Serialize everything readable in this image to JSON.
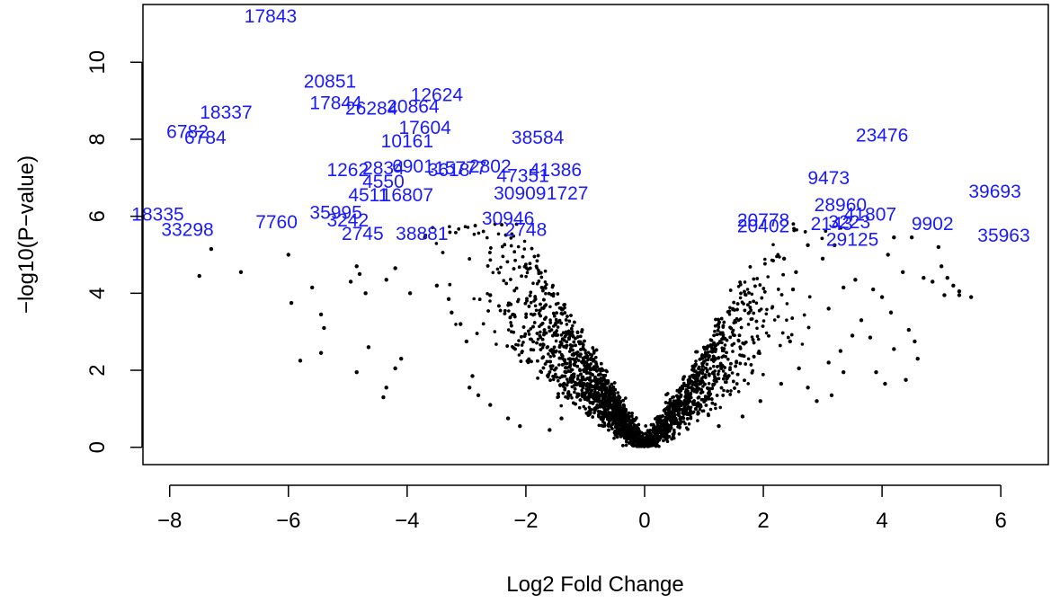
{
  "colors": {
    "point": "#000000",
    "label": "#1a1aff",
    "axis": "#000000",
    "background": "#ffffff"
  },
  "chart_data": {
    "type": "scatter",
    "title": "",
    "xlabel": "Log2 Fold Change",
    "ylabel": "−log10(P−value)",
    "xlim": [
      -8.45,
      6.8
    ],
    "ylim": [
      -0.45,
      11.5
    ],
    "x_ticks": [
      -8,
      -6,
      -4,
      -2,
      0,
      2,
      4,
      6
    ],
    "x_tick_labels": [
      "−8",
      "−6",
      "−4",
      "−2",
      "0",
      "2",
      "4",
      "6"
    ],
    "y_ticks": [
      0,
      2,
      4,
      6,
      8,
      10
    ],
    "y_tick_labels": [
      "0",
      "2",
      "4",
      "6",
      "8",
      "10"
    ],
    "grid": false,
    "note_points": "Thousands of unlabeled points form a V-shaped cloud; the outlying points below are listed explicitly.",
    "points": [
      [
        -7.5,
        4.45
      ],
      [
        -7.3,
        5.15
      ],
      [
        -6.8,
        4.55
      ],
      [
        -6.0,
        5.0
      ],
      [
        -5.95,
        3.75
      ],
      [
        -5.6,
        4.15
      ],
      [
        -5.45,
        3.45
      ],
      [
        -5.4,
        3.1
      ],
      [
        -5.45,
        2.45
      ],
      [
        -5.8,
        2.25
      ],
      [
        -4.95,
        4.3
      ],
      [
        -4.85,
        4.7
      ],
      [
        -4.8,
        4.5
      ],
      [
        -4.7,
        4.0
      ],
      [
        -4.65,
        2.6
      ],
      [
        -4.85,
        1.95
      ],
      [
        -4.4,
        1.3
      ],
      [
        -4.35,
        1.55
      ],
      [
        -4.2,
        2.05
      ],
      [
        -4.1,
        2.3
      ],
      [
        -4.35,
        4.35
      ],
      [
        -4.2,
        4.65
      ],
      [
        -3.95,
        4.0
      ],
      [
        -3.7,
        5.45
      ],
      [
        -3.5,
        4.2
      ],
      [
        -3.3,
        3.85
      ],
      [
        -3.1,
        3.2
      ],
      [
        -3.0,
        2.75
      ],
      [
        -2.9,
        1.85
      ],
      [
        -2.8,
        1.35
      ],
      [
        -2.95,
        1.55
      ],
      [
        -3.25,
        3.5
      ],
      [
        -2.6,
        3.95
      ],
      [
        -2.6,
        1.1
      ],
      [
        -2.3,
        0.75
      ],
      [
        -2.1,
        0.55
      ],
      [
        -1.6,
        0.45
      ],
      [
        -1.4,
        0.75
      ],
      [
        1.25,
        0.55
      ],
      [
        1.65,
        0.8
      ],
      [
        1.95,
        1.2
      ],
      [
        2.3,
        1.65
      ],
      [
        2.6,
        2.05
      ],
      [
        2.75,
        1.55
      ],
      [
        2.9,
        1.2
      ],
      [
        3.1,
        2.2
      ],
      [
        3.3,
        2.5
      ],
      [
        3.5,
        2.9
      ],
      [
        3.65,
        3.3
      ],
      [
        3.8,
        2.85
      ],
      [
        3.9,
        1.95
      ],
      [
        4.0,
        3.9
      ],
      [
        4.15,
        3.5
      ],
      [
        4.2,
        2.55
      ],
      [
        4.45,
        3.05
      ],
      [
        4.55,
        2.75
      ],
      [
        4.6,
        2.3
      ],
      [
        4.7,
        4.4
      ],
      [
        4.85,
        4.3
      ],
      [
        5.0,
        4.7
      ],
      [
        5.05,
        3.95
      ],
      [
        5.1,
        4.4
      ],
      [
        5.2,
        4.2
      ],
      [
        5.3,
        3.95
      ],
      [
        5.5,
        3.9
      ],
      [
        3.2,
        5.25
      ],
      [
        3.0,
        4.9
      ],
      [
        2.75,
        5.25
      ],
      [
        4.2,
        5.45
      ],
      [
        4.5,
        5.45
      ],
      [
        4.95,
        5.2
      ],
      [
        3.55,
        4.35
      ],
      [
        2.55,
        4.55
      ],
      [
        2.35,
        4.9
      ],
      [
        2.5,
        4.1
      ],
      [
        3.1,
        3.6
      ],
      [
        3.35,
        4.15
      ],
      [
        3.85,
        4.1
      ],
      [
        4.1,
        5.0
      ],
      [
        4.35,
        4.55
      ],
      [
        5.3,
        4.05
      ],
      [
        4.4,
        1.75
      ],
      [
        4.05,
        1.65
      ],
      [
        3.35,
        1.95
      ],
      [
        3.15,
        1.35
      ],
      [
        2.45,
        2.75
      ]
    ],
    "labels": [
      {
        "text": "17843",
        "x": -6.3,
        "y": 11.2
      },
      {
        "text": "20851",
        "x": -5.3,
        "y": 9.5
      },
      {
        "text": "17844",
        "x": -5.2,
        "y": 8.95
      },
      {
        "text": "26284",
        "x": -4.6,
        "y": 8.8
      },
      {
        "text": "20864",
        "x": -3.9,
        "y": 8.85
      },
      {
        "text": "12624",
        "x": -3.5,
        "y": 9.15
      },
      {
        "text": "18337",
        "x": -7.05,
        "y": 8.7
      },
      {
        "text": "6782",
        "x": -7.7,
        "y": 8.2
      },
      {
        "text": "6784",
        "x": -7.4,
        "y": 8.05
      },
      {
        "text": "17604",
        "x": -3.7,
        "y": 8.3
      },
      {
        "text": "10161",
        "x": -4.0,
        "y": 7.95
      },
      {
        "text": "38584",
        "x": -1.8,
        "y": 8.05
      },
      {
        "text": "23476",
        "x": 4.0,
        "y": 8.1
      },
      {
        "text": "1262",
        "x": -5.0,
        "y": 7.2
      },
      {
        "text": "2834",
        "x": -4.4,
        "y": 7.25
      },
      {
        "text": "6901",
        "x": -3.9,
        "y": 7.3
      },
      {
        "text": "15777",
        "x": -3.1,
        "y": 7.25
      },
      {
        "text": "2802",
        "x": -2.6,
        "y": 7.3
      },
      {
        "text": "3618",
        "x": -3.3,
        "y": 7.2
      },
      {
        "text": "41386",
        "x": -1.5,
        "y": 7.2
      },
      {
        "text": "47351",
        "x": -2.05,
        "y": 7.05
      },
      {
        "text": "4550",
        "x": -4.4,
        "y": 6.9
      },
      {
        "text": "9473",
        "x": 3.1,
        "y": 7.0
      },
      {
        "text": "4511",
        "x": -4.65,
        "y": 6.55
      },
      {
        "text": "16807",
        "x": -4.0,
        "y": 6.55
      },
      {
        "text": "30909",
        "x": -2.1,
        "y": 6.6
      },
      {
        "text": "1727",
        "x": -1.3,
        "y": 6.6
      },
      {
        "text": "39693",
        "x": 5.9,
        "y": 6.65
      },
      {
        "text": "18335",
        "x": -8.2,
        "y": 6.05
      },
      {
        "text": "35995",
        "x": -5.2,
        "y": 6.1
      },
      {
        "text": "7760",
        "x": -6.2,
        "y": 5.85
      },
      {
        "text": "3242",
        "x": -5.0,
        "y": 5.9
      },
      {
        "text": "33298",
        "x": -7.7,
        "y": 5.65
      },
      {
        "text": "28960",
        "x": 3.3,
        "y": 6.3
      },
      {
        "text": "41807",
        "x": 3.8,
        "y": 6.05
      },
      {
        "text": "20778",
        "x": 2.0,
        "y": 5.9
      },
      {
        "text": "20402",
        "x": 2.0,
        "y": 5.75
      },
      {
        "text": "2143",
        "x": 3.15,
        "y": 5.8
      },
      {
        "text": "3223",
        "x": 3.45,
        "y": 5.85
      },
      {
        "text": "9902",
        "x": 4.85,
        "y": 5.8
      },
      {
        "text": "29125",
        "x": 3.5,
        "y": 5.4
      },
      {
        "text": "35963",
        "x": 6.05,
        "y": 5.5
      },
      {
        "text": "30946",
        "x": -2.3,
        "y": 5.95
      },
      {
        "text": "2748",
        "x": -2.0,
        "y": 5.65
      },
      {
        "text": "38881",
        "x": -3.75,
        "y": 5.55
      },
      {
        "text": "2745",
        "x": -4.75,
        "y": 5.55
      }
    ]
  }
}
